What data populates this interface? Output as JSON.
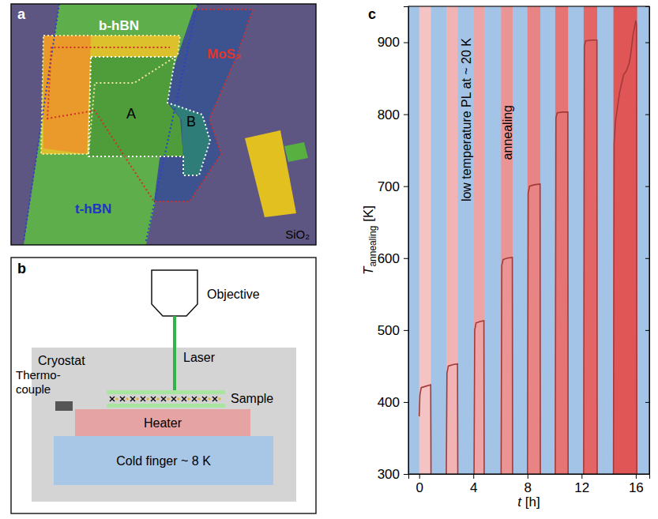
{
  "chart_data": {
    "type": "line",
    "panel_label": "c",
    "xlabel": {
      "symbol": "t",
      "unit": "[h]"
    },
    "ylabel": {
      "symbol": "T",
      "subscript": "annealing",
      "unit": "[K]"
    },
    "x": [
      0,
      0.05,
      0.15,
      0.5,
      0.85,
      0.87,
      null,
      2.0,
      2.05,
      2.15,
      2.5,
      2.83,
      2.85,
      null,
      4.05,
      4.1,
      4.2,
      4.5,
      4.78,
      4.8,
      null,
      6.05,
      6.1,
      6.2,
      6.5,
      6.88,
      6.9,
      null,
      8.0,
      8.05,
      8.15,
      8.5,
      8.93,
      8.95,
      null,
      10.05,
      10.1,
      10.2,
      10.6,
      10.98,
      11.0,
      null,
      12.15,
      12.2,
      12.3,
      12.7,
      13.13,
      13.15,
      null,
      14.35,
      14.4,
      14.5,
      14.8,
      15.1,
      15.3,
      15.5,
      15.6,
      15.8,
      16.0,
      16.05,
      16.08
    ],
    "values": [
      380,
      410,
      420,
      422,
      424,
      300,
      null,
      300,
      440,
      450,
      452,
      453,
      300,
      null,
      300,
      500,
      510,
      512,
      513,
      300,
      null,
      300,
      590,
      598,
      600,
      601,
      300,
      null,
      300,
      690,
      700,
      702,
      703,
      300,
      null,
      300,
      795,
      802,
      803,
      803,
      300,
      null,
      300,
      895,
      902,
      903,
      903,
      300,
      null,
      300,
      760,
      790,
      830,
      855,
      860,
      870,
      880,
      910,
      930,
      925,
      300
    ],
    "color": "#a33a3a",
    "xlim": [
      -0.8,
      17
    ],
    "xticks": [
      0,
      4,
      8,
      12,
      16
    ],
    "ylim": [
      300,
      950
    ],
    "yticks": [
      300,
      400,
      500,
      600,
      700,
      800,
      900
    ],
    "grid": false,
    "annealing_intervals": [
      [
        0,
        0.87
      ],
      [
        2.0,
        2.85
      ],
      [
        4.05,
        4.8
      ],
      [
        6.05,
        6.9
      ],
      [
        8.0,
        8.95
      ],
      [
        10.05,
        11.0
      ],
      [
        12.15,
        13.15
      ],
      [
        14.35,
        16.1
      ]
    ],
    "annotations": [
      "low temperature PL at ~ 20 K",
      "annealing"
    ]
  },
  "micrograph": {
    "panel_label": "a",
    "labels": {
      "b_hbn": "b-hBN",
      "mos2": "MoS₂",
      "t_hbn": "t-hBN",
      "region_a": "A",
      "region_b": "B",
      "substrate": "SiO₂"
    }
  },
  "schematic": {
    "panel_label": "b",
    "labels": {
      "objective": "Objective",
      "laser": "Laser",
      "cryostat": "Cryostat",
      "thermocouple": [
        "Thermo-",
        "couple"
      ],
      "sample": "Sample",
      "heater": "Heater",
      "cold_finger": "Cold finger ~ 8 K"
    }
  }
}
